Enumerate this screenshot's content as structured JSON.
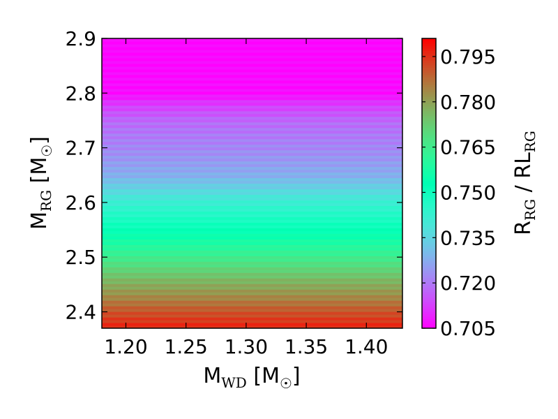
{
  "chart_data": {
    "type": "heatmap",
    "title": "",
    "x_label": {
      "main": "M",
      "sub": "WD",
      "suffix": " [M",
      "sun": "☉",
      "close": "]"
    },
    "y_label": {
      "main": "M",
      "sub": "RG",
      "suffix": " [M",
      "sun": "☉",
      "close": "]"
    },
    "colorbar_label": {
      "r": "R",
      "r_sub": "RG",
      "sep": " / RL",
      "rl_sub": "RG"
    },
    "xlim": [
      1.18,
      1.43
    ],
    "ylim": [
      2.37,
      2.9
    ],
    "x_ticks": [
      "1.20",
      "1.25",
      "1.30",
      "1.35",
      "1.40"
    ],
    "y_ticks": [
      "2.4",
      "2.5",
      "2.6",
      "2.7",
      "2.8",
      "2.9"
    ],
    "colorbar_range": [
      0.705,
      0.801
    ],
    "colorbar_ticks": [
      "0.705",
      "0.720",
      "0.735",
      "0.750",
      "0.765",
      "0.780",
      "0.795"
    ],
    "colormap": "rainbow",
    "value_profile": {
      "description_units": "M_RG vs R_RG/RL_RG, nearly independent of M_WD",
      "m_rg": [
        2.37,
        2.4,
        2.43,
        2.46,
        2.5,
        2.55,
        2.6,
        2.65,
        2.7,
        2.75,
        2.78,
        2.8,
        2.9
      ],
      "ratio": [
        0.797,
        0.791,
        0.783,
        0.776,
        0.765,
        0.752,
        0.742,
        0.728,
        0.722,
        0.718,
        0.712,
        0.706,
        0.705
      ]
    }
  }
}
